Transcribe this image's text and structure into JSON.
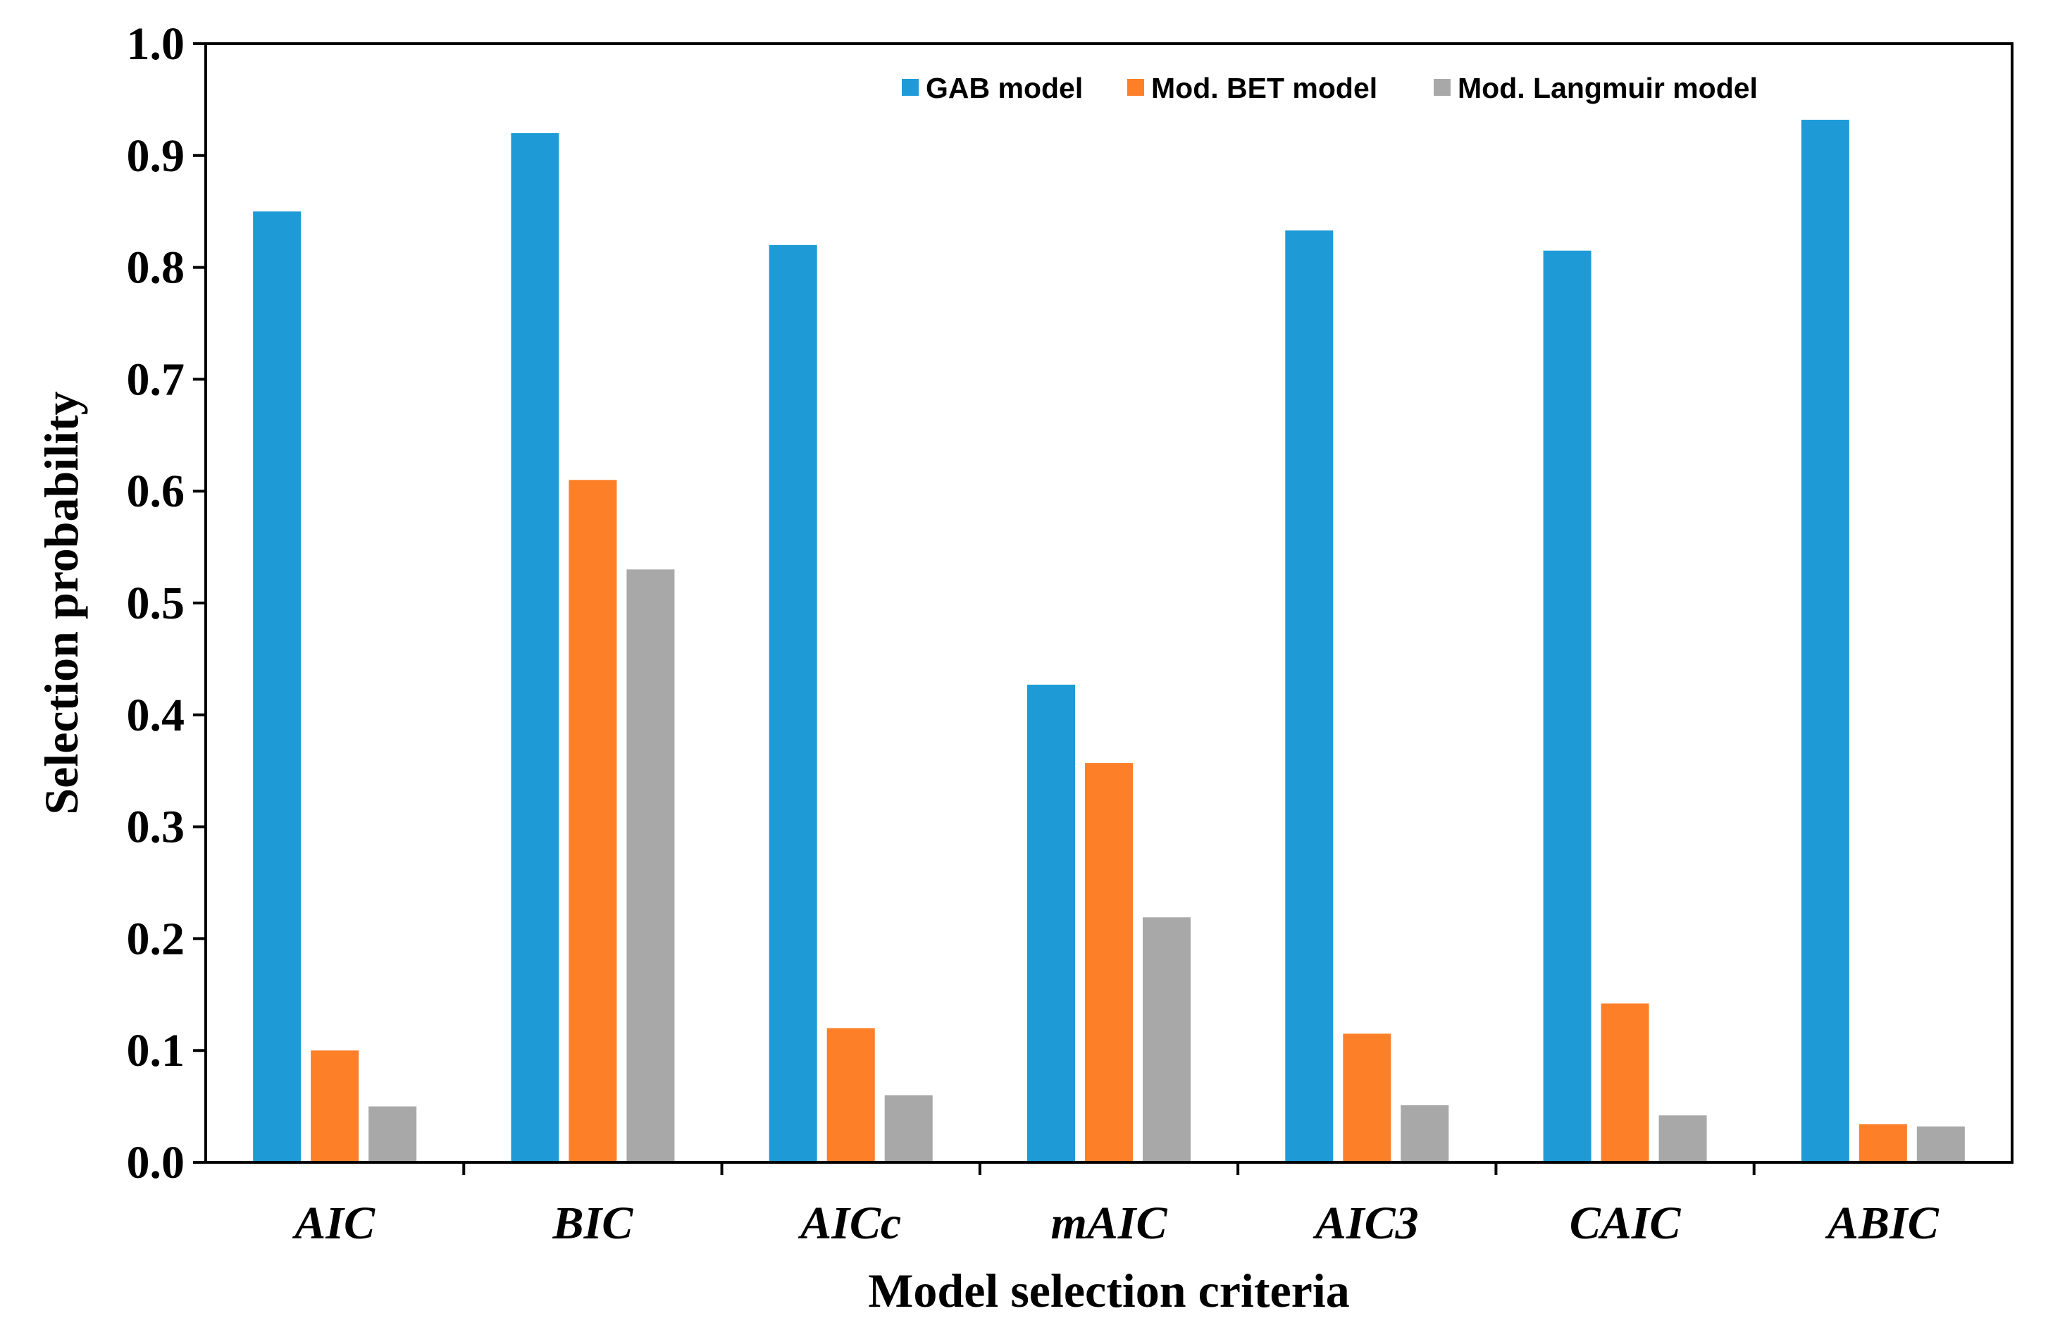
{
  "chart_data": {
    "type": "bar",
    "title": "",
    "xlabel": "Model selection criteria",
    "ylabel": "Selection probability",
    "ylim": [
      0,
      1.0
    ],
    "yticks": [
      "0.0",
      "0.1",
      "0.2",
      "0.3",
      "0.4",
      "0.5",
      "0.6",
      "0.7",
      "0.8",
      "0.9",
      "1.0"
    ],
    "categories": [
      "AIC",
      "BIC",
      "AICc",
      "mAIC",
      "AIC3",
      "CAIC",
      "ABIC"
    ],
    "series": [
      {
        "name": "GAB model",
        "color": "#1e9bd7",
        "values": [
          0.85,
          0.92,
          0.82,
          0.427,
          0.833,
          0.815,
          0.932
        ]
      },
      {
        "name": "Mod. BET model",
        "color": "#fd7f28",
        "values": [
          0.1,
          0.61,
          0.12,
          0.357,
          0.115,
          0.142,
          0.034
        ]
      },
      {
        "name": "Mod. Langmuir model",
        "color": "#a8a8a8",
        "values": [
          0.05,
          0.53,
          0.06,
          0.219,
          0.051,
          0.042,
          0.032
        ]
      }
    ],
    "legend_position": "top-right",
    "grid": false
  }
}
